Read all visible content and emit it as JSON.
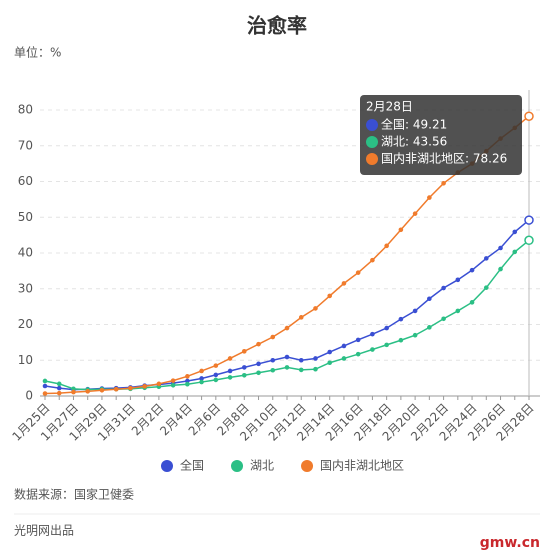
{
  "chart_data": {
    "type": "line",
    "title": "治愈率",
    "subtitle": "单位：%",
    "categories": [
      "1月25日",
      null,
      "1月27日",
      null,
      "1月29日",
      null,
      "1月31日",
      null,
      "2月2日",
      null,
      "2月4日",
      null,
      "2月6日",
      null,
      "2月8日",
      null,
      "2月10日",
      null,
      "2月12日",
      null,
      "2月14日",
      null,
      "2月16日",
      null,
      "2月18日",
      null,
      "2月20日",
      null,
      "2月22日",
      null,
      "2月24日",
      null,
      "2月26日",
      null,
      "2月28日"
    ],
    "series": [
      {
        "name": "全国",
        "color": "#3a4fd3",
        "values": [
          2.8,
          2.2,
          1.8,
          1.9,
          2.1,
          2.2,
          2.4,
          2.9,
          3.2,
          3.6,
          4.2,
          4.9,
          5.9,
          7.0,
          8.0,
          9.0,
          10.0,
          10.9,
          10.0,
          10.5,
          12.3,
          14.0,
          15.7,
          17.3,
          19.0,
          21.5,
          23.8,
          27.2,
          30.2,
          32.5,
          35.2,
          38.5,
          41.4,
          45.9,
          49.21
        ]
      },
      {
        "name": "湖北",
        "color": "#2bbf85",
        "values": [
          4.2,
          3.4,
          2.0,
          1.8,
          1.9,
          1.9,
          2.0,
          2.3,
          2.6,
          3.0,
          3.3,
          3.9,
          4.5,
          5.2,
          5.8,
          6.5,
          7.2,
          8.0,
          7.3,
          7.5,
          9.3,
          10.5,
          11.7,
          13.0,
          14.3,
          15.6,
          17.0,
          19.2,
          21.6,
          23.8,
          26.2,
          30.3,
          35.5,
          40.3,
          43.56
        ]
      },
      {
        "name": "国内非湖北地区",
        "color": "#f07b2c",
        "values": [
          0.7,
          0.8,
          1.1,
          1.3,
          1.6,
          1.9,
          2.2,
          2.7,
          3.4,
          4.3,
          5.5,
          7.0,
          8.5,
          10.5,
          12.5,
          14.5,
          16.5,
          19.0,
          22.0,
          24.5,
          28.0,
          31.5,
          34.5,
          38.0,
          42.0,
          46.5,
          51.0,
          55.5,
          59.5,
          62.5,
          65.0,
          68.5,
          72.0,
          75.0,
          78.26
        ]
      }
    ],
    "ylim": [
      0,
      80
    ],
    "yticks": [
      0,
      10,
      20,
      30,
      40,
      50,
      60,
      70,
      80
    ],
    "grid": true,
    "legend": "bottom",
    "tooltip": {
      "title": "2月28日",
      "lines": [
        "全国: 49.21",
        "湖北: 43.56",
        "国内非湖北地区: 78.26"
      ]
    },
    "source": "数据来源：国家卫健委",
    "credit": "光明网出品",
    "logo": "gmw.cn"
  }
}
